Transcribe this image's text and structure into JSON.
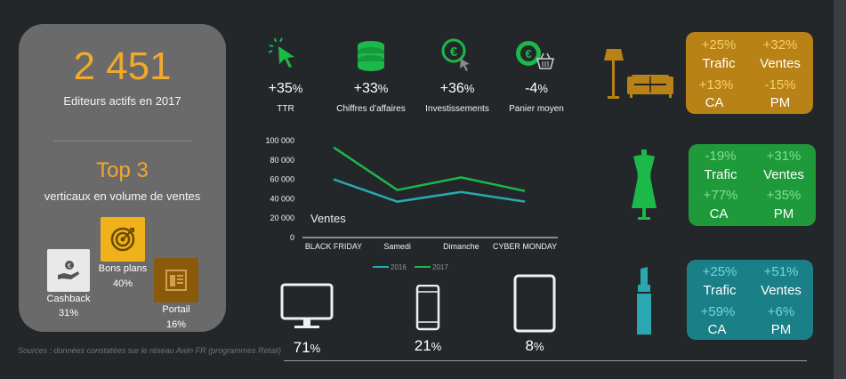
{
  "colors": {
    "background": "#242729",
    "card": "#6a6a6a",
    "orange": "#f0a92b",
    "green": "#1bb84a",
    "teal": "#2aa8b2",
    "gold_box": "#b98216",
    "green_box": "#1e9a3a",
    "teal_box": "#1a7f86"
  },
  "left_card": {
    "big_number": "2 451",
    "subtitle": "Editeurs actifs en 2017",
    "top_title": "Top 3",
    "top_subtitle": "verticaux en volume de ventes",
    "items": [
      {
        "label": "Cashback",
        "value": "31%",
        "icon": "hand-coin-icon"
      },
      {
        "label": "Bons plans",
        "value": "40%",
        "icon": "target-icon"
      },
      {
        "label": "Portail",
        "value": "16%",
        "icon": "portal-icon"
      }
    ]
  },
  "kpis": [
    {
      "value": "+35",
      "unit": "%",
      "label": "TTR",
      "icon": "cursor-click-icon"
    },
    {
      "value": "+33",
      "unit": "%",
      "label": "Chiffres d’affaires",
      "icon": "coins-stack-icon"
    },
    {
      "value": "+36",
      "unit": "%",
      "label": "Investissements",
      "icon": "euro-coin-click-icon"
    },
    {
      "value": "-4",
      "unit": "%",
      "label": "Panier moyen",
      "icon": "euro-basket-icon"
    }
  ],
  "verticals": [
    {
      "icon": "home-lamp-sofa-icon",
      "trafic": "+25%",
      "ventes": "+32%",
      "ca": "+13%",
      "pm": "-15%",
      "labels": [
        "Trafic",
        "Ventes",
        "CA",
        "PM"
      ]
    },
    {
      "icon": "dress-mannequin-icon",
      "trafic": "-19%",
      "ventes": "+31%",
      "ca": "+77%",
      "pm": "+35%",
      "labels": [
        "Trafic",
        "Ventes",
        "CA",
        "PM"
      ]
    },
    {
      "icon": "lipstick-icon",
      "trafic": "+25%",
      "ventes": "+51%",
      "ca": "+59%",
      "pm": "+6%",
      "labels": [
        "Trafic",
        "Ventes",
        "CA",
        "PM"
      ]
    }
  ],
  "chart_data": {
    "type": "line",
    "title": "Ventes",
    "categories": [
      "BLACK FRIDAY",
      "Samedi",
      "Dimanche",
      "CYBER MONDAY"
    ],
    "series": [
      {
        "name": "2016",
        "color": "#2aa8b2",
        "values": [
          60000,
          37000,
          47000,
          37000
        ]
      },
      {
        "name": "2017",
        "color": "#1bb84a",
        "values": [
          93000,
          49000,
          62000,
          48000
        ]
      }
    ],
    "yticks": [
      "100 000",
      "80 000",
      "60 000",
      "40 000",
      "20 000",
      "0"
    ],
    "ylim": [
      0,
      100000
    ],
    "grid": false,
    "legend": "bottom"
  },
  "devices": [
    {
      "icon": "desktop-icon",
      "value": "71",
      "unit": "%"
    },
    {
      "icon": "smartphone-icon",
      "value": "21",
      "unit": "%"
    },
    {
      "icon": "tablet-icon",
      "value": "8",
      "unit": "%"
    }
  ],
  "source": "Sources : données constatées sur  le réseau Awin FR (programmes Retail)"
}
